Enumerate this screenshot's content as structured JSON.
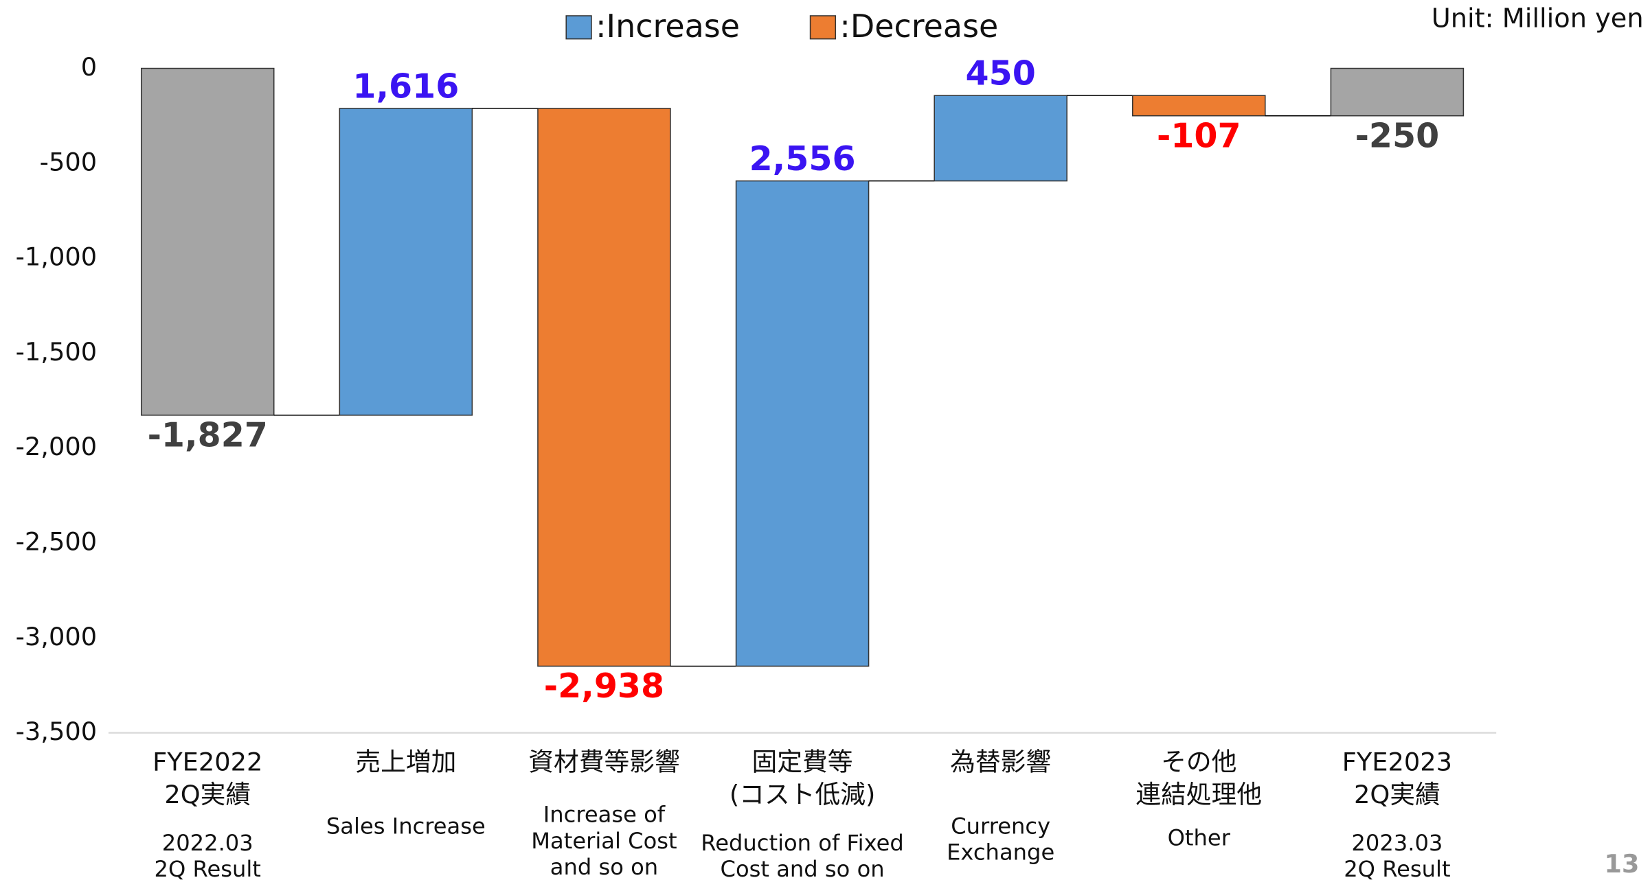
{
  "chart_data": {
    "type": "waterfall",
    "legend": [
      {
        "label": ":Increase",
        "color": "#5b9bd5"
      },
      {
        "label": ":Decrease",
        "color": "#ed7d31"
      }
    ],
    "unit": "Unit: Million yen",
    "page_number": "13",
    "categories": [
      {
        "lines": [
          "FYE2022",
          "2Q実績"
        ],
        "sub": [
          "2022.03",
          "2Q Result"
        ]
      },
      {
        "lines": [
          "売上増加"
        ],
        "sub": [
          "Sales Increase"
        ]
      },
      {
        "lines": [
          "資材費等影響"
        ],
        "sub": [
          "Increase of",
          "Material Cost",
          "and so on"
        ]
      },
      {
        "lines": [
          "固定費等",
          "(コスト低減)"
        ],
        "sub": [
          "Reduction of Fixed",
          "Cost and so on"
        ]
      },
      {
        "lines": [
          "為替影響"
        ],
        "sub": [
          "Currency",
          "Exchange"
        ]
      },
      {
        "lines": [
          "その他",
          "連結処理他"
        ],
        "sub": [
          "Other"
        ]
      },
      {
        "lines": [
          "FYE2023",
          "2Q実績"
        ],
        "sub": [
          "2023.03",
          "2Q Result"
        ]
      }
    ],
    "values": [
      -1827,
      1616,
      -2938,
      2556,
      450,
      -107,
      -250
    ],
    "value_labels": [
      "-1,827",
      "1,616",
      "-2,938",
      "2,556",
      "450",
      "-107",
      "-250"
    ],
    "kinds": [
      "total",
      "increase",
      "decrease",
      "increase",
      "increase",
      "decrease",
      "total"
    ],
    "colors": {
      "total": "#a5a5a5",
      "increase": "#5b9bd5",
      "decrease": "#ed7d31"
    },
    "label_colors": {
      "total": "#404040",
      "increase": "#3a14f2",
      "decrease": "#ff0000"
    },
    "ylim": [
      -3500,
      0
    ],
    "yticks": [
      0,
      -500,
      {
        "value": -1000,
        "label": "-1,000"
      },
      {
        "value": -1500,
        "label": "-1,500"
      },
      {
        "value": -2000,
        "label": "-2,000"
      },
      {
        "value": -2500,
        "label": "-2,500"
      },
      {
        "value": -3000,
        "label": "-3,000"
      },
      {
        "value": -3500,
        "label": "-3,500"
      }
    ]
  }
}
